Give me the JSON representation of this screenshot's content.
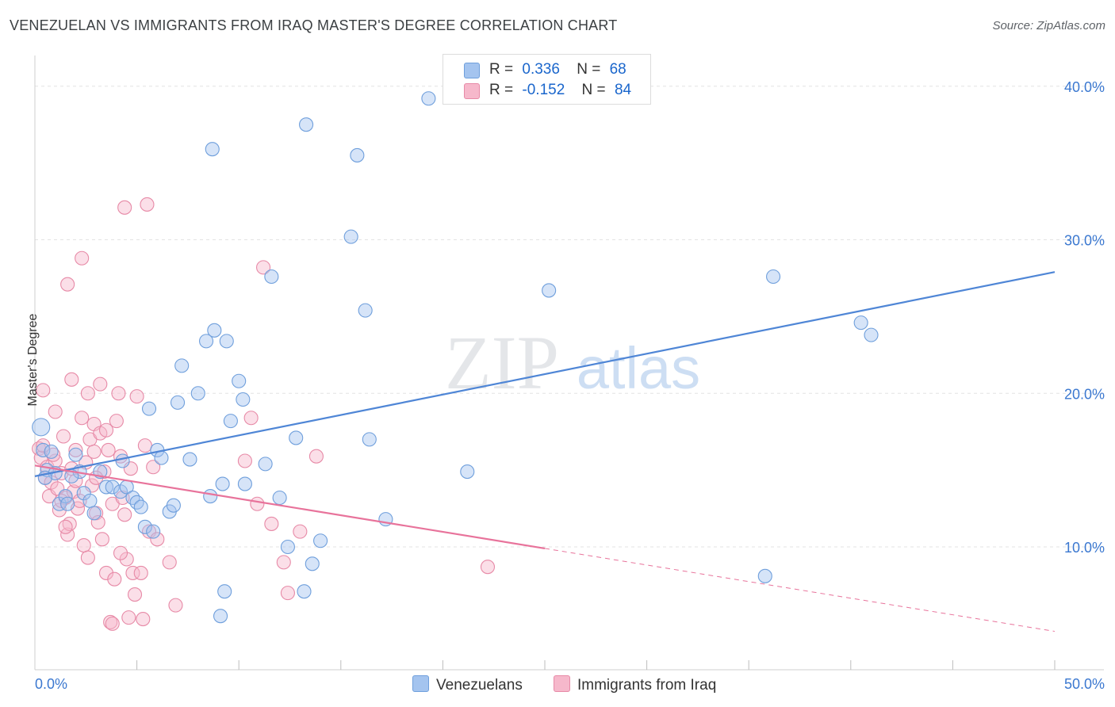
{
  "title": "VENEZUELAN VS IMMIGRANTS FROM IRAQ MASTER'S DEGREE CORRELATION CHART",
  "source": "Source: ZipAtlas.com",
  "watermark": {
    "zip": "ZIP",
    "atlas": "atlas"
  },
  "legend": {
    "r_label": "R =",
    "n_label": "N =",
    "series": [
      {
        "name": "Venezuelans",
        "r": "0.336",
        "n": "68",
        "color": "#a4c4ef",
        "edge": "#6f9fdc"
      },
      {
        "name": "Immigrants from Iraq",
        "r": "-0.152",
        "n": "84",
        "color": "#f6b8cb",
        "edge": "#e78aa7"
      }
    ]
  },
  "chart_data": {
    "type": "scatter",
    "title": "VENEZUELAN VS IMMIGRANTS FROM IRAQ MASTER'S DEGREE CORRELATION CHART",
    "xlabel": "",
    "ylabel": "Master's Degree",
    "xlim": [
      0,
      50
    ],
    "ylim": [
      2,
      42
    ],
    "x_tick_labels": [
      "0.0%",
      "50.0%"
    ],
    "y_ticks": [
      10,
      20,
      30,
      40
    ],
    "y_tick_labels": [
      "10.0%",
      "20.0%",
      "30.0%",
      "40.0%"
    ],
    "grid": true,
    "series": [
      {
        "name": "Venezuelans",
        "color": "#4f86d6",
        "points": [
          [
            0.3,
            17.8
          ],
          [
            0.4,
            16.3
          ],
          [
            0.6,
            15.0
          ],
          [
            0.8,
            16.2
          ],
          [
            1.0,
            14.8
          ],
          [
            1.2,
            12.8
          ],
          [
            1.5,
            13.3
          ],
          [
            1.6,
            12.8
          ],
          [
            2.0,
            16.0
          ],
          [
            2.2,
            14.9
          ],
          [
            2.4,
            13.5
          ],
          [
            2.7,
            13.0
          ],
          [
            2.9,
            12.2
          ],
          [
            3.2,
            14.9
          ],
          [
            3.5,
            13.9
          ],
          [
            3.8,
            13.9
          ],
          [
            4.2,
            13.6
          ],
          [
            4.3,
            15.6
          ],
          [
            4.5,
            13.9
          ],
          [
            4.8,
            13.2
          ],
          [
            5.0,
            12.9
          ],
          [
            5.2,
            12.6
          ],
          [
            5.4,
            11.3
          ],
          [
            5.6,
            19.0
          ],
          [
            5.8,
            11.0
          ],
          [
            6.0,
            16.3
          ],
          [
            6.2,
            15.8
          ],
          [
            6.6,
            12.3
          ],
          [
            6.8,
            12.7
          ],
          [
            7.0,
            19.4
          ],
          [
            7.2,
            21.8
          ],
          [
            7.6,
            15.7
          ],
          [
            8.0,
            20.0
          ],
          [
            8.4,
            23.4
          ],
          [
            8.6,
            13.3
          ],
          [
            8.8,
            24.1
          ],
          [
            9.2,
            14.1
          ],
          [
            9.4,
            23.4
          ],
          [
            9.6,
            18.2
          ],
          [
            8.7,
            35.9
          ],
          [
            9.1,
            5.5
          ],
          [
            9.3,
            7.1
          ],
          [
            10.0,
            20.8
          ],
          [
            10.3,
            14.1
          ],
          [
            10.2,
            19.6
          ],
          [
            11.3,
            15.4
          ],
          [
            11.6,
            27.6
          ],
          [
            12.0,
            13.2
          ],
          [
            12.4,
            10.0
          ],
          [
            12.8,
            17.1
          ],
          [
            13.2,
            7.1
          ],
          [
            13.6,
            8.9
          ],
          [
            14.0,
            10.4
          ],
          [
            13.3,
            37.5
          ],
          [
            15.5,
            30.2
          ],
          [
            15.8,
            35.5
          ],
          [
            16.2,
            25.4
          ],
          [
            16.4,
            17.0
          ],
          [
            17.2,
            11.8
          ],
          [
            19.3,
            39.2
          ],
          [
            21.2,
            14.9
          ],
          [
            25.2,
            26.7
          ],
          [
            36.2,
            27.6
          ],
          [
            35.8,
            8.1
          ],
          [
            40.5,
            24.6
          ],
          [
            41.0,
            23.8
          ],
          [
            0.5,
            14.5
          ],
          [
            1.8,
            14.6
          ]
        ]
      },
      {
        "name": "Immigrants from Iraq",
        "color": "#e8739b",
        "points": [
          [
            0.2,
            16.4
          ],
          [
            0.3,
            15.8
          ],
          [
            0.4,
            16.6
          ],
          [
            0.5,
            14.5
          ],
          [
            0.6,
            15.2
          ],
          [
            0.7,
            13.3
          ],
          [
            0.8,
            14.2
          ],
          [
            1.0,
            15.6
          ],
          [
            1.1,
            13.8
          ],
          [
            1.2,
            12.4
          ],
          [
            1.3,
            14.8
          ],
          [
            1.4,
            17.2
          ],
          [
            1.5,
            13.2
          ],
          [
            1.6,
            10.8
          ],
          [
            1.7,
            11.5
          ],
          [
            1.8,
            15.1
          ],
          [
            1.9,
            13.6
          ],
          [
            2.0,
            16.3
          ],
          [
            2.1,
            12.5
          ],
          [
            2.2,
            13.0
          ],
          [
            2.3,
            18.4
          ],
          [
            2.4,
            10.1
          ],
          [
            2.5,
            15.5
          ],
          [
            2.6,
            9.3
          ],
          [
            2.7,
            17.0
          ],
          [
            2.8,
            14.0
          ],
          [
            2.9,
            18.0
          ],
          [
            3.0,
            12.2
          ],
          [
            3.1,
            11.6
          ],
          [
            3.2,
            17.4
          ],
          [
            3.3,
            10.5
          ],
          [
            3.4,
            14.9
          ],
          [
            3.5,
            8.3
          ],
          [
            3.6,
            16.3
          ],
          [
            3.7,
            5.1
          ],
          [
            3.8,
            12.8
          ],
          [
            3.9,
            7.9
          ],
          [
            4.0,
            18.2
          ],
          [
            4.1,
            20.0
          ],
          [
            4.2,
            15.9
          ],
          [
            4.3,
            13.2
          ],
          [
            4.4,
            12.1
          ],
          [
            4.5,
            9.2
          ],
          [
            4.6,
            5.4
          ],
          [
            4.7,
            15.1
          ],
          [
            4.8,
            8.3
          ],
          [
            4.9,
            6.9
          ],
          [
            5.0,
            19.8
          ],
          [
            5.2,
            8.3
          ],
          [
            5.4,
            16.6
          ],
          [
            5.6,
            11.0
          ],
          [
            5.8,
            15.2
          ],
          [
            6.0,
            10.5
          ],
          [
            6.6,
            9.0
          ],
          [
            6.9,
            6.2
          ],
          [
            4.4,
            32.1
          ],
          [
            5.5,
            32.3
          ],
          [
            2.3,
            28.8
          ],
          [
            1.6,
            27.1
          ],
          [
            1.8,
            20.9
          ],
          [
            2.6,
            20.0
          ],
          [
            3.2,
            20.6
          ],
          [
            0.4,
            20.2
          ],
          [
            1.0,
            18.8
          ],
          [
            2.9,
            16.2
          ],
          [
            3.5,
            17.6
          ],
          [
            4.2,
            9.6
          ],
          [
            3.8,
            5.0
          ],
          [
            1.5,
            11.3
          ],
          [
            10.3,
            15.6
          ],
          [
            10.6,
            18.4
          ],
          [
            10.9,
            12.8
          ],
          [
            11.2,
            28.2
          ],
          [
            11.6,
            11.5
          ],
          [
            12.2,
            9.0
          ],
          [
            12.4,
            7.0
          ],
          [
            13.0,
            11.0
          ],
          [
            13.8,
            15.9
          ],
          [
            22.2,
            8.7
          ],
          [
            5.3,
            5.3
          ],
          [
            2.0,
            14.3
          ],
          [
            0.9,
            16.0
          ],
          [
            3.0,
            14.5
          ],
          [
            1.3,
            13.0
          ]
        ]
      }
    ],
    "trendlines": [
      {
        "series": "Venezuelans",
        "x": [
          0,
          50
        ],
        "y": [
          14.6,
          27.9
        ],
        "style": "solid"
      },
      {
        "series": "Immigrants from Iraq",
        "x": [
          0,
          25
        ],
        "y": [
          15.3,
          9.9
        ],
        "style": "solid"
      },
      {
        "series": "Immigrants from Iraq",
        "x": [
          25,
          50
        ],
        "y": [
          9.9,
          4.5
        ],
        "style": "dashed"
      }
    ]
  }
}
